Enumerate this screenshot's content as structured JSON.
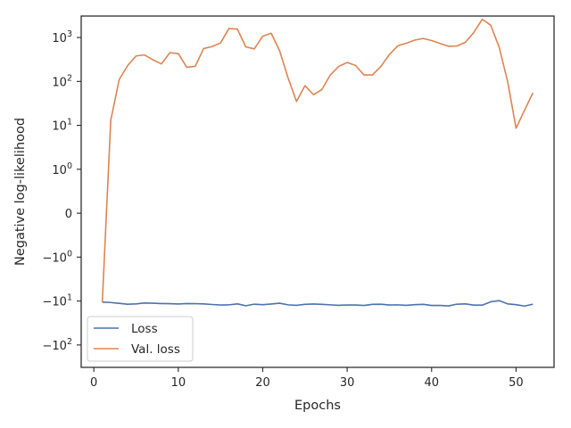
{
  "chart_data": {
    "type": "line",
    "title": "",
    "xlabel": "Epochs",
    "ylabel": "Negative log-likelihood",
    "xlim": [
      -1.5,
      54.5
    ],
    "yscale": "symlog",
    "x_ticks": [
      {
        "value": 0,
        "label": "0"
      },
      {
        "value": 10,
        "label": "10"
      },
      {
        "value": 20,
        "label": "20"
      },
      {
        "value": 30,
        "label": "30"
      },
      {
        "value": 40,
        "label": "40"
      },
      {
        "value": 50,
        "label": "50"
      }
    ],
    "y_ticks": [
      {
        "base": "10",
        "exp": "3",
        "sign": ""
      },
      {
        "base": "10",
        "exp": "2",
        "sign": ""
      },
      {
        "base": "10",
        "exp": "1",
        "sign": ""
      },
      {
        "base": "10",
        "exp": "0",
        "sign": ""
      },
      {
        "base": "0",
        "exp": "",
        "sign": ""
      },
      {
        "base": "10",
        "exp": "0",
        "sign": "−"
      },
      {
        "base": "10",
        "exp": "1",
        "sign": "−"
      },
      {
        "base": "10",
        "exp": "2",
        "sign": "−"
      }
    ],
    "grid": false,
    "legend_position": "lower-left",
    "series": [
      {
        "name": "Loss",
        "color": "#4c72b0",
        "x": [
          1,
          2,
          3,
          4,
          5,
          6,
          7,
          8,
          9,
          10,
          11,
          12,
          13,
          14,
          15,
          16,
          17,
          18,
          19,
          20,
          21,
          22,
          23,
          24,
          25,
          26,
          27,
          28,
          29,
          30,
          31,
          32,
          33,
          34,
          35,
          36,
          37,
          38,
          39,
          40,
          41,
          42,
          43,
          44,
          45,
          46,
          47,
          48,
          49,
          50,
          51,
          52
        ],
        "values": [
          -10.6,
          -10.8,
          -11.3,
          -11.8,
          -11.6,
          -11.1,
          -11.2,
          -11.4,
          -11.5,
          -11.7,
          -11.4,
          -11.5,
          -11.6,
          -12.0,
          -12.3,
          -12.2,
          -11.6,
          -12.8,
          -11.8,
          -12.1,
          -11.7,
          -11.2,
          -12.2,
          -12.5,
          -11.9,
          -11.7,
          -11.9,
          -12.2,
          -12.5,
          -12.3,
          -12.3,
          -12.6,
          -11.9,
          -11.8,
          -12.3,
          -12.2,
          -12.5,
          -12.1,
          -11.9,
          -12.6,
          -12.6,
          -12.9,
          -11.8,
          -11.6,
          -12.4,
          -12.4,
          -10.4,
          -9.8,
          -11.6,
          -12.1,
          -13.0,
          -11.8
        ]
      },
      {
        "name": "Val. loss",
        "color": "#dd8452",
        "x": [
          1,
          2,
          3,
          4,
          5,
          6,
          7,
          8,
          9,
          10,
          11,
          12,
          13,
          14,
          15,
          16,
          17,
          18,
          19,
          20,
          21,
          22,
          23,
          24,
          25,
          26,
          27,
          28,
          29,
          30,
          31,
          32,
          33,
          34,
          35,
          36,
          37,
          38,
          39,
          40,
          41,
          42,
          43,
          44,
          45,
          46,
          47,
          48,
          49,
          50,
          51,
          52
        ],
        "values": [
          -10.6,
          13,
          110,
          230,
          380,
          400,
          310,
          250,
          450,
          430,
          210,
          220,
          560,
          620,
          750,
          1600,
          1550,
          610,
          550,
          1070,
          1250,
          500,
          120,
          35,
          80,
          50,
          65,
          140,
          220,
          270,
          230,
          140,
          140,
          220,
          410,
          650,
          740,
          870,
          950,
          850,
          730,
          630,
          640,
          780,
          1300,
          2600,
          1900,
          600,
          100,
          8.6,
          22,
          55
        ]
      }
    ]
  }
}
